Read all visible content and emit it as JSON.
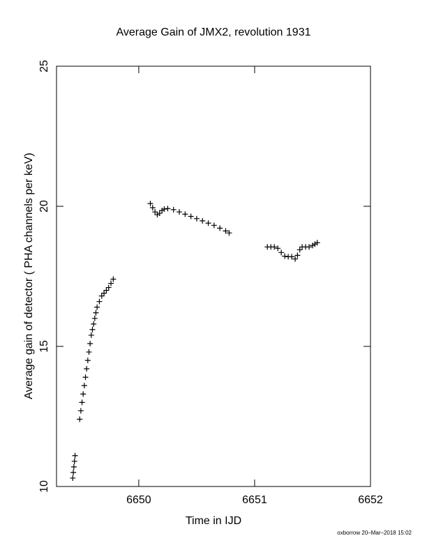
{
  "chart_data": {
    "type": "scatter",
    "title": "Average Gain of JMX2, revolution 1931",
    "xlabel": "Time in IJD",
    "ylabel": "Average gain of detector ( PHA channels per keV)",
    "footer": "oxborrow 20–Mar–2018 15:02",
    "xlim": [
      6649.29,
      6652
    ],
    "ylim": [
      10,
      25
    ],
    "xticks": [
      6650,
      6651,
      6652
    ],
    "yticks": [
      10,
      15,
      20,
      25
    ],
    "color": "#000000",
    "marker": "+",
    "x": [
      6649.43,
      6649.435,
      6649.44,
      6649.445,
      6649.45,
      6649.49,
      6649.5,
      6649.51,
      6649.52,
      6649.53,
      6649.54,
      6649.55,
      6649.56,
      6649.57,
      6649.58,
      6649.59,
      6649.6,
      6649.61,
      6649.62,
      6649.63,
      6649.64,
      6649.66,
      6649.68,
      6649.7,
      6649.72,
      6649.74,
      6649.76,
      6649.78,
      6650.1,
      6650.12,
      6650.14,
      6650.16,
      6650.18,
      6650.2,
      6650.22,
      6650.25,
      6650.3,
      6650.35,
      6650.4,
      6650.45,
      6650.5,
      6650.55,
      6650.6,
      6650.65,
      6650.7,
      6650.75,
      6650.78,
      6651.11,
      6651.14,
      6651.17,
      6651.2,
      6651.23,
      6651.26,
      6651.29,
      6651.32,
      6651.35,
      6651.37,
      6651.39,
      6651.41,
      6651.44,
      6651.47,
      6651.5,
      6651.52,
      6651.54
    ],
    "y": [
      10.3,
      10.5,
      10.7,
      10.9,
      11.1,
      12.4,
      12.7,
      13.0,
      13.3,
      13.6,
      13.9,
      14.2,
      14.5,
      14.8,
      15.1,
      15.4,
      15.6,
      15.8,
      16.0,
      16.2,
      16.4,
      16.6,
      16.8,
      16.9,
      17.0,
      17.1,
      17.25,
      17.4,
      20.1,
      19.95,
      19.8,
      19.7,
      19.75,
      19.85,
      19.9,
      19.92,
      19.88,
      19.8,
      19.72,
      19.64,
      19.56,
      19.48,
      19.4,
      19.32,
      19.22,
      19.12,
      19.05,
      18.55,
      18.55,
      18.55,
      18.5,
      18.35,
      18.22,
      18.2,
      18.2,
      18.12,
      18.25,
      18.45,
      18.55,
      18.55,
      18.55,
      18.6,
      18.65,
      18.7
    ]
  }
}
